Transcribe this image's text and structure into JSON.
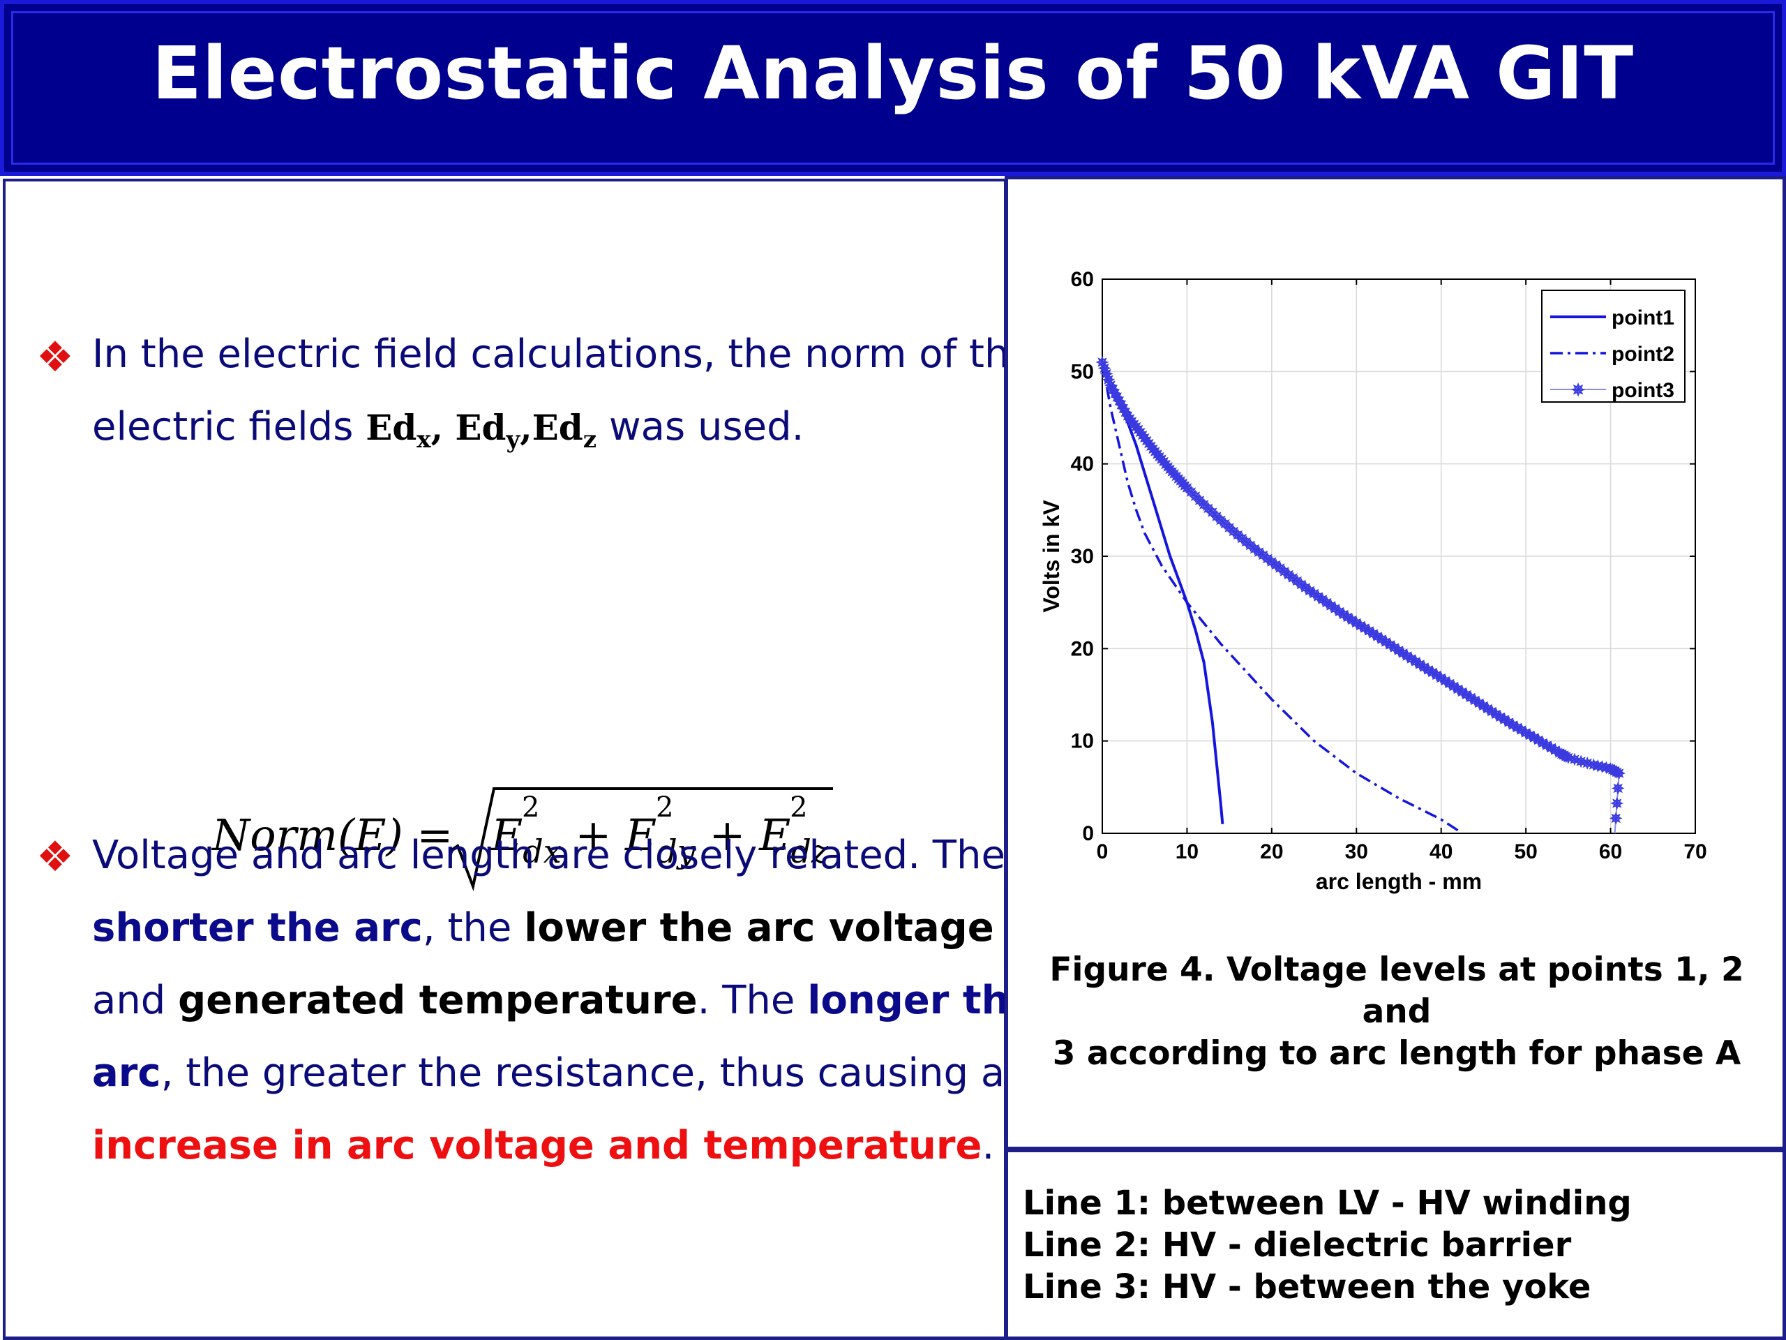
{
  "title": "Electrostatic Analysis of 50 kVA GIT",
  "bullet1": {
    "line1": "In the electric field calculations, the norm of the",
    "line2_prefix": "electric fields ",
    "ed": "Ed",
    "sub_x": "x",
    "sub_y": "y",
    "sub_z": "z",
    "sep": ",",
    "line2_suffix": " was used."
  },
  "formula": {
    "lhs": "Norm(E) = ",
    "e": "E",
    "sq": "2",
    "dx": "dx",
    "dy": "dy",
    "dz": "dz",
    "plus": " + "
  },
  "bullet2": {
    "l1": "Voltage and arc length are closely related. The",
    "l2_a": "shorter the arc",
    "l2_b": ", the ",
    "l2_c": "lower the arc voltage",
    "l3_a": "and ",
    "l3_b": "generated temperature",
    "l3_c": ". The ",
    "l3_d": "longer the",
    "l4_a": "arc",
    "l4_b": ", the greater the resistance, thus causing an",
    "l5_a": "increase in arc voltage and temperature",
    "l5_b": "."
  },
  "caption": {
    "line1": "Figure 4. Voltage levels at points 1, 2 and",
    "line2": "3 according to arc length for phase A"
  },
  "lines": [
    "Line 1: between LV - HV winding",
    "Line 2: HV - dielectric barrier",
    "Line 3: HV - between the yoke"
  ],
  "colors": {
    "banner": "#00008e",
    "series1": "#1515e0",
    "series2": "#1515e0",
    "series3": "#8a8ae8",
    "bullet": "#e01010"
  },
  "chart_data": {
    "type": "line",
    "title": "",
    "xlabel": "arc length - mm",
    "ylabel": "Volts in kV",
    "xlim": [
      0,
      70
    ],
    "ylim": [
      0,
      60
    ],
    "xticks": [
      "0",
      "10",
      "20",
      "30",
      "40",
      "50",
      "60",
      "70"
    ],
    "yticks": [
      "0",
      "10",
      "20",
      "30",
      "40",
      "50",
      "60"
    ],
    "grid": true,
    "legend_position": "top-right",
    "series": [
      {
        "name": "point1",
        "style": "solid",
        "x": [
          0,
          1,
          2,
          3,
          4,
          5,
          6,
          7,
          8,
          9,
          10,
          11,
          12,
          13,
          14,
          14.2
        ],
        "y": [
          51,
          48.5,
          46.5,
          44.5,
          42,
          39,
          36,
          33,
          30,
          27.5,
          25,
          22,
          18.5,
          12,
          3,
          1
        ]
      },
      {
        "name": "point2",
        "style": "dashdot",
        "x": [
          0,
          1,
          2,
          3,
          4,
          5,
          7,
          10,
          14,
          20,
          25,
          30,
          35,
          40,
          42
        ],
        "y": [
          51,
          46,
          42,
          38,
          35,
          32.5,
          29,
          25,
          20.5,
          14.5,
          10,
          6.5,
          3.8,
          1.5,
          0.3
        ]
      },
      {
        "name": "point3",
        "style": "dotted-star",
        "x": [
          0,
          1,
          2,
          3,
          4,
          5,
          6,
          7,
          8,
          9,
          10,
          12,
          14,
          16,
          18,
          20,
          22,
          24,
          26,
          28,
          30,
          32,
          34,
          36,
          38,
          40,
          42,
          44,
          46,
          48,
          50,
          52,
          54,
          55,
          58,
          60,
          61,
          60.5
        ],
        "y": [
          51,
          48.5,
          46.8,
          45.2,
          44,
          42.8,
          41.6,
          40.5,
          39.4,
          38.4,
          37.4,
          35.6,
          33.9,
          32.3,
          30.8,
          29.4,
          28,
          26.6,
          25.3,
          24,
          22.8,
          21.6,
          20.4,
          19.2,
          18,
          16.8,
          15.6,
          14.4,
          13.2,
          12,
          10.9,
          9.8,
          8.7,
          8.2,
          7.4,
          7,
          6.5,
          0
        ]
      }
    ]
  }
}
